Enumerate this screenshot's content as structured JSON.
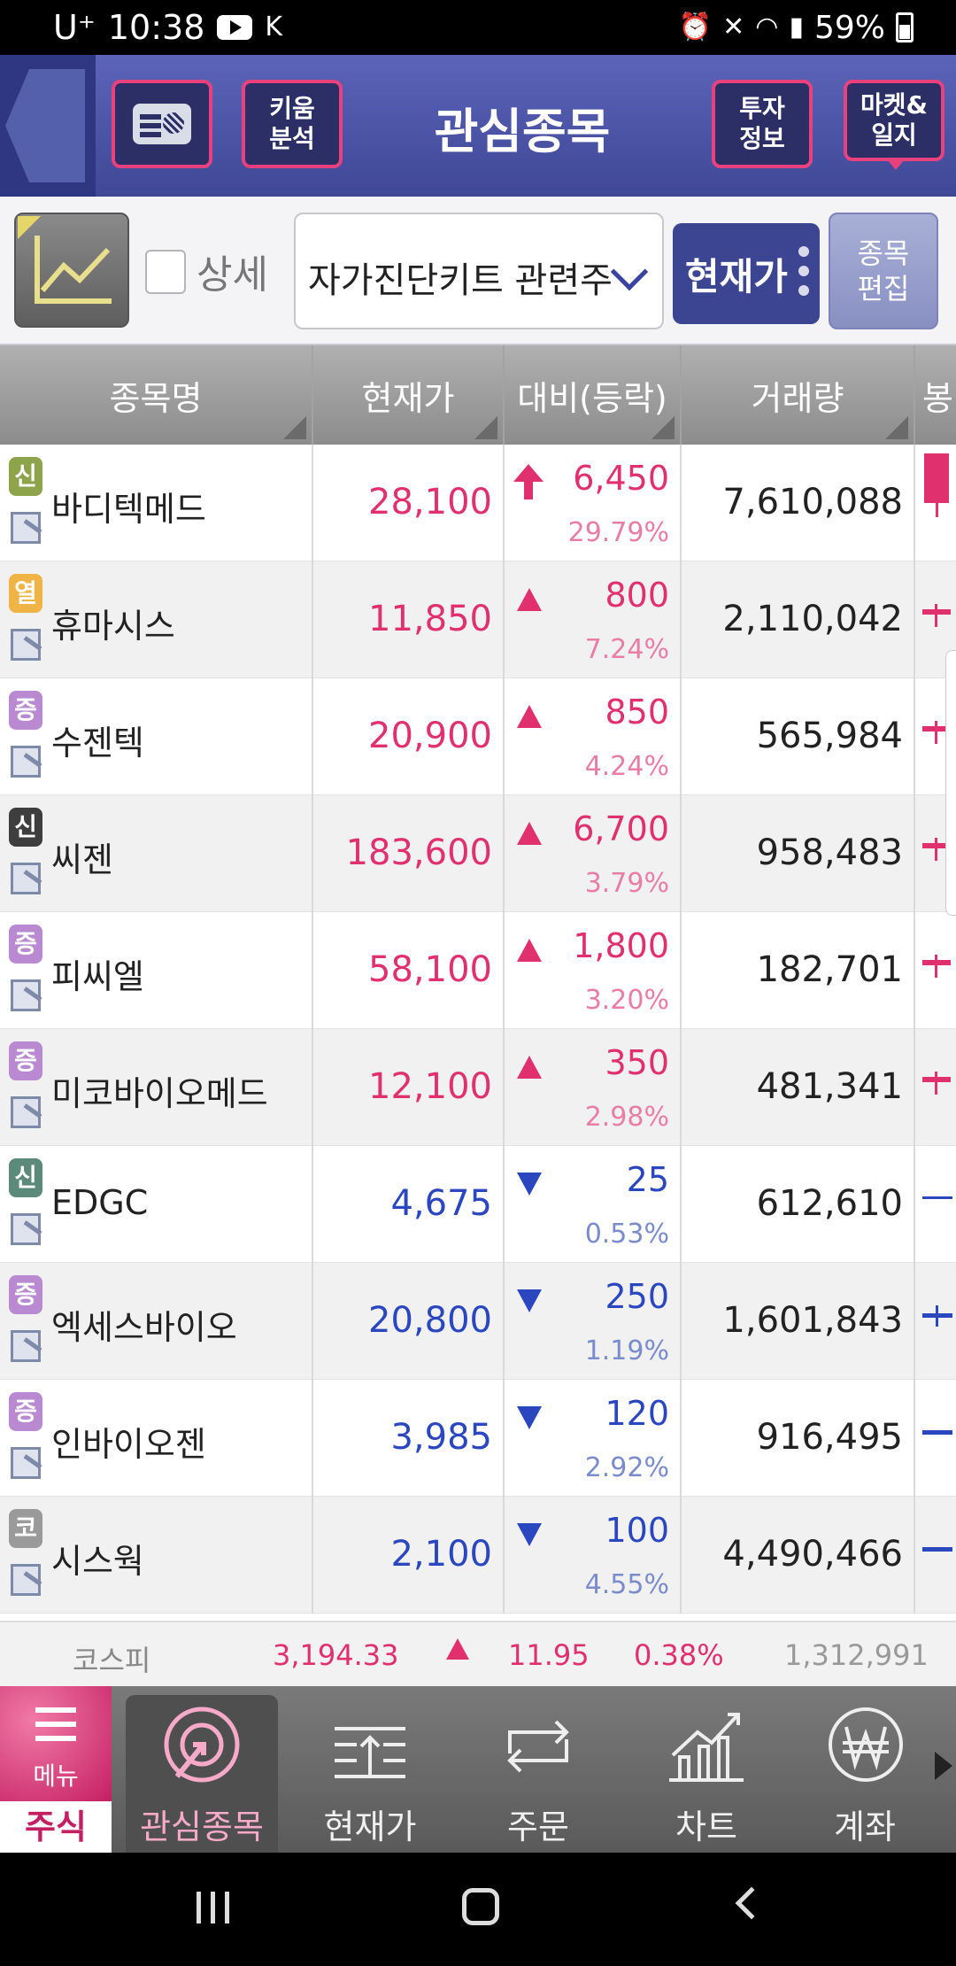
{
  "status_bar": {
    "carrier": "U⁺",
    "time": "10:38",
    "battery": "59%"
  },
  "header": {
    "title": "관심종목",
    "kiwoom_analysis": "키움\n분석",
    "invest_info": "투자\n정보",
    "market_journal": "마켓&\n일지"
  },
  "toolbar": {
    "detail_label": "상세",
    "group_value": "자가진단키트 관련주",
    "price_mode": "현재가",
    "edit_label": "종목\n편집"
  },
  "columns": [
    "종목명",
    "현재가",
    "대비(등락)",
    "거래량",
    "봉"
  ],
  "colors": {
    "up": "#e0306e",
    "up_pct": "#e87da6",
    "down": "#2b47c0",
    "down_pct": "#7a8ccb"
  },
  "rows": [
    {
      "badge": "신",
      "badge_color": "#8ea44a",
      "name": "바디텍메드",
      "price": "28,100",
      "dir": "upper",
      "change": "6,450",
      "pct": "29.79%",
      "volume": "7,610,088"
    },
    {
      "badge": "열",
      "badge_color": "#f0b446",
      "name": "휴마시스",
      "price": "11,850",
      "dir": "up",
      "change": "800",
      "pct": "7.24%",
      "volume": "2,110,042"
    },
    {
      "badge": "증",
      "badge_color": "#b98ad2",
      "name": "수젠텍",
      "price": "20,900",
      "dir": "up",
      "change": "850",
      "pct": "4.24%",
      "volume": "565,984"
    },
    {
      "badge": "신",
      "badge_color": "#3e3e3e",
      "name": "씨젠",
      "price": "183,600",
      "dir": "up",
      "change": "6,700",
      "pct": "3.79%",
      "volume": "958,483"
    },
    {
      "badge": "증",
      "badge_color": "#b98ad2",
      "name": "피씨엘",
      "price": "58,100",
      "dir": "up",
      "change": "1,800",
      "pct": "3.20%",
      "volume": "182,701"
    },
    {
      "badge": "증",
      "badge_color": "#b98ad2",
      "name": "미코바이오메드",
      "price": "12,100",
      "dir": "up",
      "change": "350",
      "pct": "2.98%",
      "volume": "481,341"
    },
    {
      "badge": "신",
      "badge_color": "#5b8a7a",
      "name": "EDGC",
      "price": "4,675",
      "dir": "down",
      "change": "25",
      "pct": "0.53%",
      "volume": "612,610"
    },
    {
      "badge": "증",
      "badge_color": "#b98ad2",
      "name": "엑세스바이오",
      "price": "20,800",
      "dir": "down",
      "change": "250",
      "pct": "1.19%",
      "volume": "1,601,843"
    },
    {
      "badge": "증",
      "badge_color": "#b98ad2",
      "name": "인바이오젠",
      "price": "3,985",
      "dir": "down",
      "change": "120",
      "pct": "2.92%",
      "volume": "916,495"
    },
    {
      "badge": "코",
      "badge_color": "#9a9a9a",
      "name": "시스웍",
      "price": "2,100",
      "dir": "down",
      "change": "100",
      "pct": "4.55%",
      "volume": "4,490,466"
    }
  ],
  "index_bar": {
    "name": "코스피",
    "value": "3,194.33",
    "change": "11.95",
    "pct": "0.38%",
    "volume": "1,312,991"
  },
  "bottom_nav": {
    "menu": "메뉴",
    "stock": "주식",
    "items": [
      "관심종목",
      "현재가",
      "주문",
      "차트",
      "계좌"
    ]
  }
}
